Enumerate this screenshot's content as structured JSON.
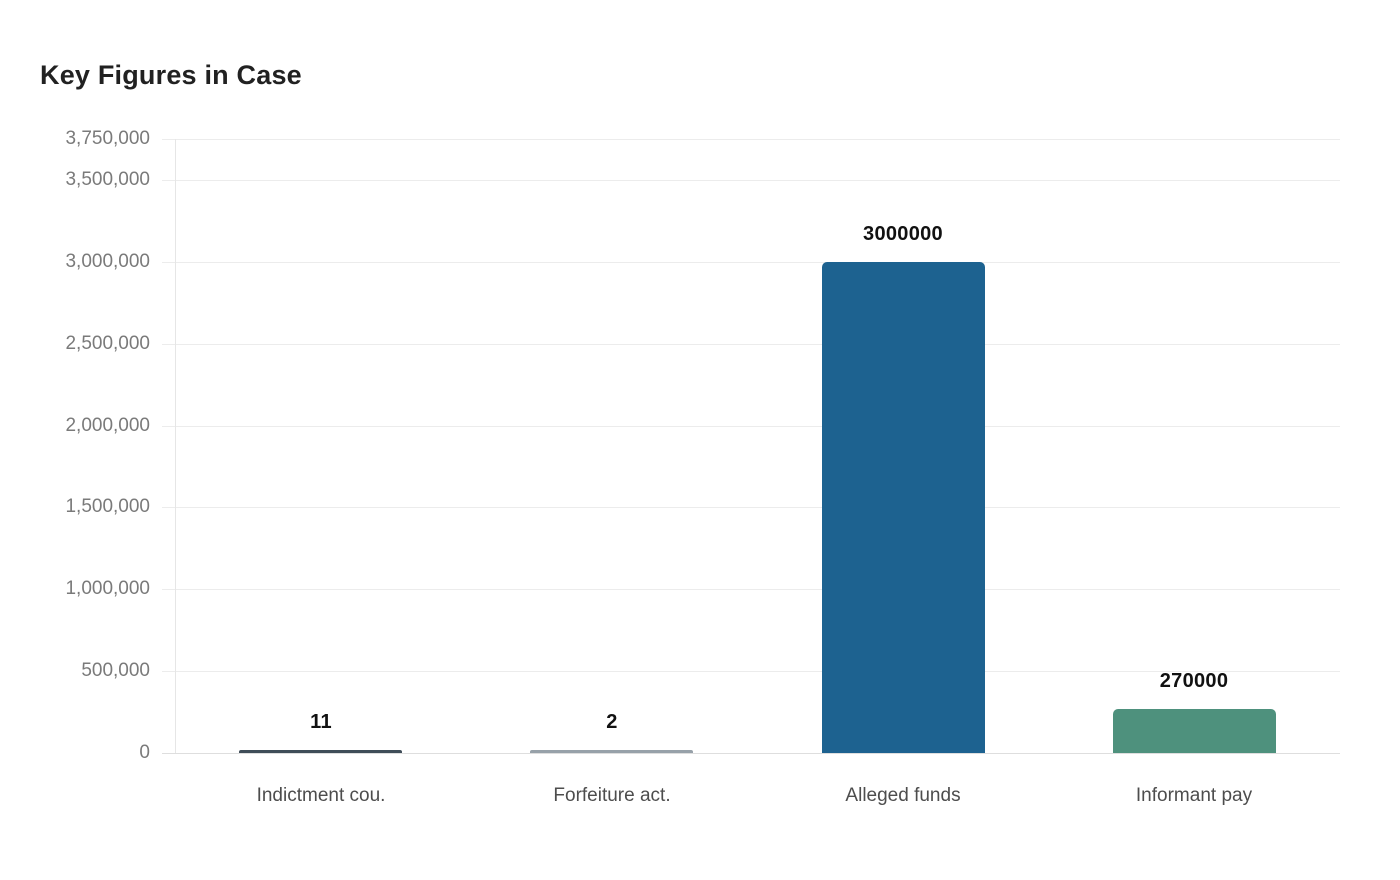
{
  "page": {
    "background": "#ffffff"
  },
  "chart_data": {
    "type": "bar",
    "title": "Key Figures in Case",
    "categories": [
      "Indictment cou.",
      "Forfeiture act.",
      "Alleged funds",
      "Informant pay"
    ],
    "values": [
      11,
      2,
      3000000,
      270000
    ],
    "value_labels": [
      "11",
      "2",
      "3000000",
      "270000"
    ],
    "bar_colors": [
      "#3f4d58",
      "#97a1a9",
      "#1d6290",
      "#4e917d"
    ],
    "xlabel": "",
    "ylabel": "",
    "ylim": [
      0,
      3750000
    ],
    "yticks": [
      0,
      500000,
      1000000,
      1500000,
      2000000,
      2500000,
      3000000,
      3500000,
      3750000
    ],
    "ytick_labels": [
      "0",
      "500,000",
      "1,000,000",
      "1,500,000",
      "2,000,000",
      "2,500,000",
      "3,000,000",
      "3,500,000",
      "3,750,000"
    ],
    "grid": true,
    "legend": false
  },
  "colors": {
    "gridline": "#ececec",
    "axis_line": "#e6e6e6",
    "title": "#212121",
    "ytick_text": "#7a7a7a",
    "category_text": "#4d4d4d",
    "value_text": "#111111"
  }
}
